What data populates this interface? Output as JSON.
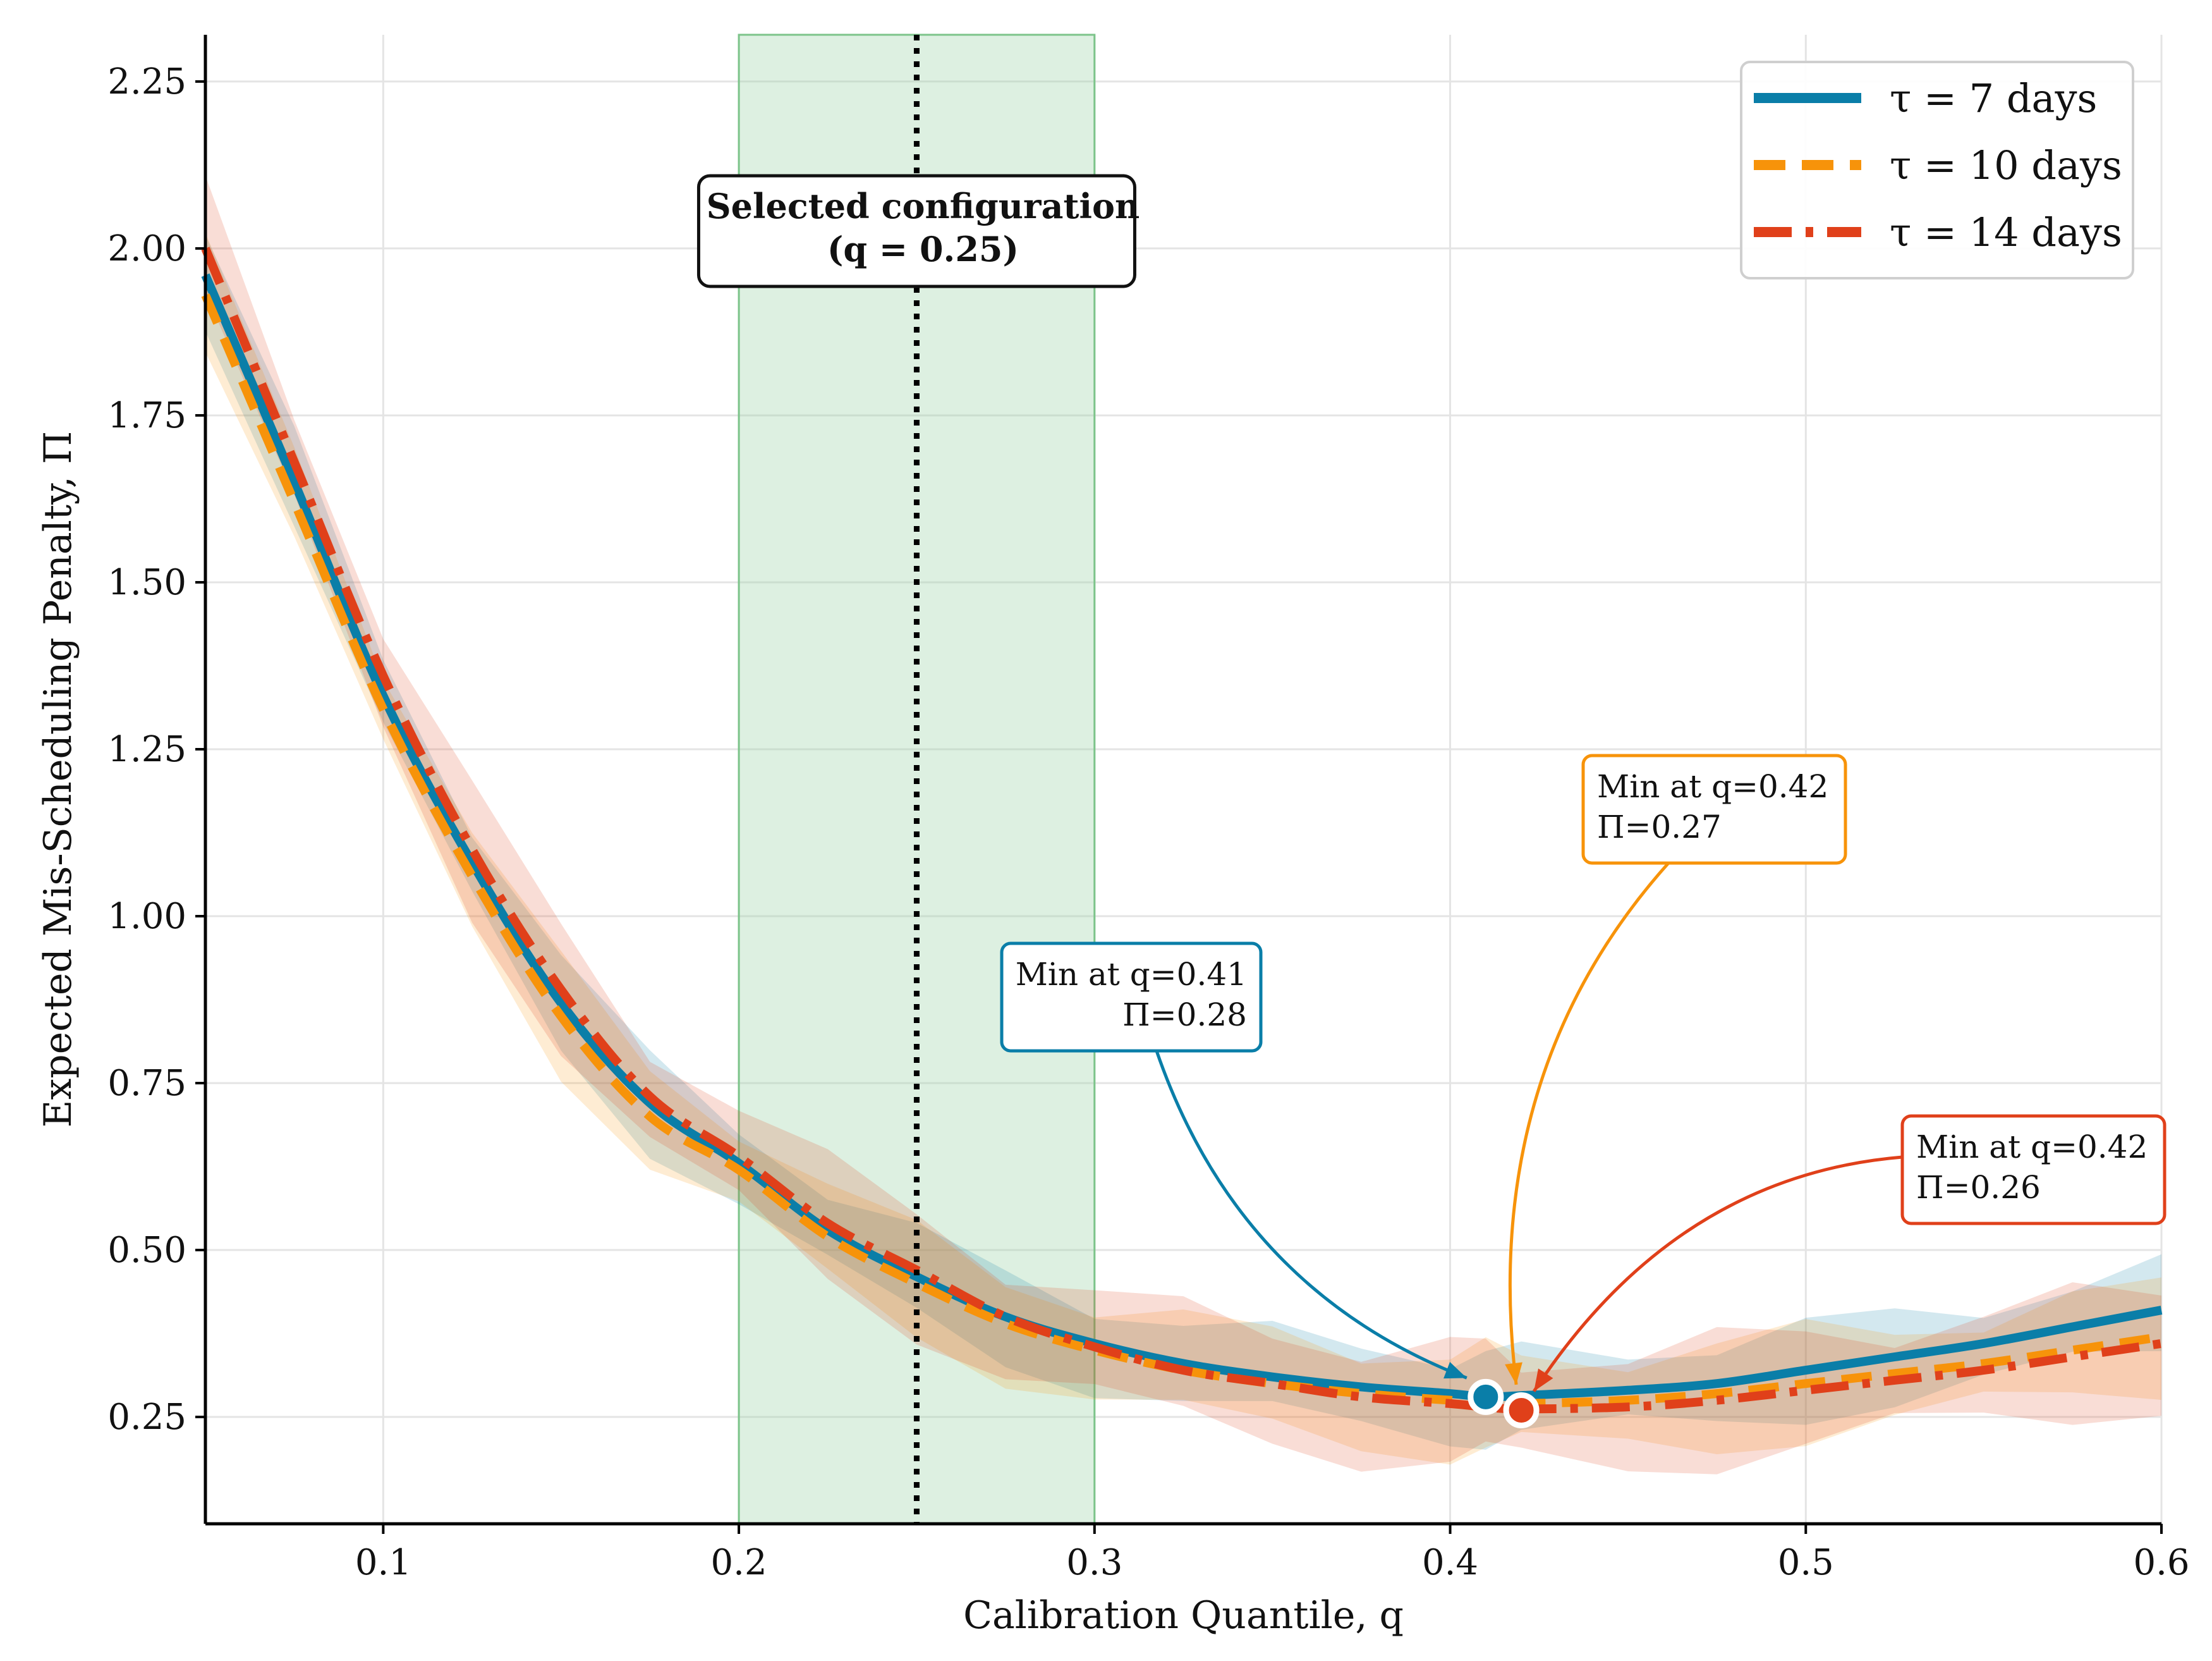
{
  "chart_data": {
    "type": "line",
    "title": "",
    "xlabel": "Calibration Quantile, q",
    "ylabel": "Expected Mis-Scheduling Penalty, Π",
    "xlim": [
      0.05,
      0.6
    ],
    "ylim": [
      0.09,
      2.32
    ],
    "grid": true,
    "legend_position": "top-right",
    "x_ticks": [
      0.1,
      0.2,
      0.3,
      0.4,
      0.5,
      0.6
    ],
    "x_tick_labels": [
      "0.1",
      "0.2",
      "0.3",
      "0.4",
      "0.5",
      "0.6"
    ],
    "y_ticks": [
      0.25,
      0.5,
      0.75,
      1.0,
      1.25,
      1.5,
      1.75,
      2.0,
      2.25
    ],
    "y_tick_labels": [
      "0.25",
      "0.50",
      "0.75",
      "1.00",
      "1.25",
      "1.50",
      "1.75",
      "2.00",
      "2.25"
    ],
    "x": [
      0.05,
      0.075,
      0.1,
      0.125,
      0.15,
      0.175,
      0.2,
      0.225,
      0.25,
      0.275,
      0.3,
      0.325,
      0.35,
      0.375,
      0.4,
      0.41,
      0.42,
      0.45,
      0.475,
      0.5,
      0.525,
      0.55,
      0.575,
      0.6
    ],
    "series": [
      {
        "name": "τ = 7 days",
        "color": "#0a7ea8",
        "style": "solid",
        "values": [
          1.96,
          1.65,
          1.33,
          1.08,
          0.87,
          0.72,
          0.63,
          0.53,
          0.46,
          0.4,
          0.36,
          0.33,
          0.31,
          0.295,
          0.285,
          0.28,
          0.282,
          0.29,
          0.3,
          0.32,
          0.34,
          0.36,
          0.385,
          0.41
        ],
        "band": 0.06
      },
      {
        "name": "τ = 10 days",
        "color": "#f7930a",
        "style": "dashed",
        "values": [
          1.93,
          1.62,
          1.31,
          1.06,
          0.85,
          0.7,
          0.62,
          0.52,
          0.45,
          0.39,
          0.35,
          0.32,
          0.3,
          0.285,
          0.275,
          0.272,
          0.27,
          0.275,
          0.285,
          0.3,
          0.315,
          0.33,
          0.35,
          0.37
        ],
        "band": 0.07
      },
      {
        "name": "τ = 14 days",
        "color": "#e0401a",
        "style": "dashdot",
        "values": [
          2.0,
          1.68,
          1.36,
          1.1,
          0.89,
          0.73,
          0.64,
          0.54,
          0.47,
          0.4,
          0.355,
          0.32,
          0.3,
          0.28,
          0.27,
          0.265,
          0.262,
          0.265,
          0.275,
          0.29,
          0.305,
          0.32,
          0.34,
          0.36
        ],
        "band": 0.08
      }
    ],
    "shaded_region": {
      "x_start": 0.2,
      "x_end": 0.3,
      "color": "#9fd3a8"
    },
    "vertical_line": {
      "x": 0.25
    },
    "selected_annotation": {
      "line1": "Selected configuration",
      "line2": "(q = 0.25)"
    },
    "minima": [
      {
        "series": "τ = 7 days",
        "q": 0.41,
        "pi": 0.28,
        "color": "#0a7ea8",
        "line1": "Min at q=0.41",
        "line2": "Π=0.28"
      },
      {
        "series": "τ = 10 days",
        "q": 0.42,
        "pi": 0.27,
        "color": "#f7930a",
        "line1": "Min at q=0.42",
        "line2": "Π=0.27"
      },
      {
        "series": "τ = 14 days",
        "q": 0.42,
        "pi": 0.26,
        "color": "#e0401a",
        "line1": "Min at q=0.42",
        "line2": "Π=0.26"
      }
    ]
  }
}
